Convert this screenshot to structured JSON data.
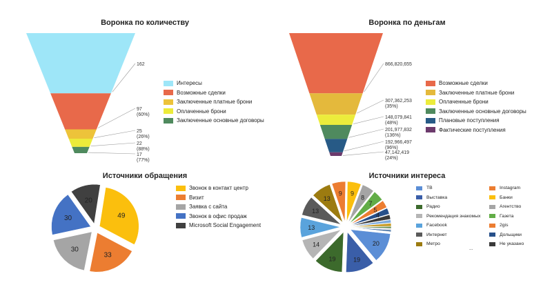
{
  "chart_data": [
    {
      "type": "funnel",
      "title": "Воронка по количеству",
      "stages": [
        {
          "name": "Интересы",
          "value": 162,
          "value_label": "162",
          "pct_label": "",
          "color": "#9ee6f8"
        },
        {
          "name": "Возможные сделки",
          "value": 97,
          "value_label": "97",
          "pct_label": "(60%)",
          "color": "#e8694a"
        },
        {
          "name": "Заключенные платные брони",
          "value": 25,
          "value_label": "25",
          "pct_label": "(26%)",
          "color": "#edc33a"
        },
        {
          "name": "Оплаченные брони",
          "value": 22,
          "value_label": "22",
          "pct_label": "(88%)",
          "color": "#eceb3a"
        },
        {
          "name": "Заключенные основные договоры",
          "value": 17,
          "value_label": "17",
          "pct_label": "(77%)",
          "color": "#4f8a5e"
        }
      ]
    },
    {
      "type": "funnel",
      "title": "Воронка по деньгам",
      "stages": [
        {
          "name": "Возможные сделки",
          "value": 866820655,
          "value_label": "866,820,655",
          "pct_label": "",
          "color": "#e8694a"
        },
        {
          "name": "Заключенные платные брони",
          "value": 307362253,
          "value_label": "307,362,253",
          "pct_label": "(35%)",
          "color": "#e4b93c"
        },
        {
          "name": "Оплаченные брони",
          "value": 148079841,
          "value_label": "148,079,841",
          "pct_label": "(48%)",
          "color": "#ecec3c"
        },
        {
          "name": "Заключенные основные договоры",
          "value": 201977832,
          "value_label": "201,977,832",
          "pct_label": "(136%)",
          "color": "#4f8a5e"
        },
        {
          "name": "Плановые поступления",
          "value": 192966497,
          "value_label": "192,966,497",
          "pct_label": "(96%)",
          "color": "#275a86"
        },
        {
          "name": "Фактические поступления",
          "value": 47142419,
          "value_label": "47,142,419",
          "pct_label": "(24%)",
          "color": "#6c3a6c"
        }
      ]
    },
    {
      "type": "pie",
      "title": "Источники обращения",
      "slices": [
        {
          "name": "Звонок в контакт центр",
          "value": 49,
          "color": "#fbbf0d"
        },
        {
          "name": "Визит",
          "value": 33,
          "color": "#ec7d31"
        },
        {
          "name": "Заявка с сайта",
          "value": 30,
          "color": "#a5a5a5"
        },
        {
          "name": "Звонок в офис продаж",
          "value": 30,
          "color": "#4472c4"
        },
        {
          "name": "Microsoft Social Engagement",
          "value": 20,
          "color": "#404040"
        }
      ]
    },
    {
      "type": "pie",
      "title": "Источники интереса",
      "slices": [
        {
          "name": "ТВ",
          "value": 20,
          "color": "#5b8ed6"
        },
        {
          "name": "Выставка",
          "value": 19,
          "color": "#3a5ea8"
        },
        {
          "name": "Радио",
          "value": 19,
          "color": "#3c6a2c"
        },
        {
          "name": "Рекомендация знакомых",
          "value": 14,
          "color": "#b5b5b5"
        },
        {
          "name": "Facebook",
          "value": 13,
          "color": "#5aa3dc"
        },
        {
          "name": "Интернет",
          "value": 13,
          "color": "#5a5a5a"
        },
        {
          "name": "Метро",
          "value": 13,
          "color": "#9c7b10"
        },
        {
          "name": "Instagram",
          "value": 9,
          "color": "#ec7d31"
        },
        {
          "name": "Банки",
          "value": 9,
          "color": "#fbbf0d"
        },
        {
          "name": "Агентство",
          "value": 8,
          "color": "#a5a5a5"
        },
        {
          "name": "Газета",
          "value": 7,
          "color": "#62ad47"
        },
        {
          "name": "2gis",
          "value": 5,
          "color": "#ec7d31"
        },
        {
          "name": "Дольщики",
          "value": 4,
          "color": "#27508a"
        },
        {
          "name": "Не указано",
          "value": 3,
          "color": "#3a3a3a"
        },
        {
          "name": "",
          "value": 2,
          "color": "#7ba9dc"
        },
        {
          "name": "",
          "value": 2,
          "color": "#c99c28"
        },
        {
          "name": "",
          "value": 1,
          "color": "#4a7a34"
        },
        {
          "name": "",
          "value": 1,
          "color": "#d5d5d5"
        },
        {
          "name": "",
          "value": 1,
          "color": "#2e5f99"
        }
      ],
      "legend_more": "..."
    }
  ]
}
